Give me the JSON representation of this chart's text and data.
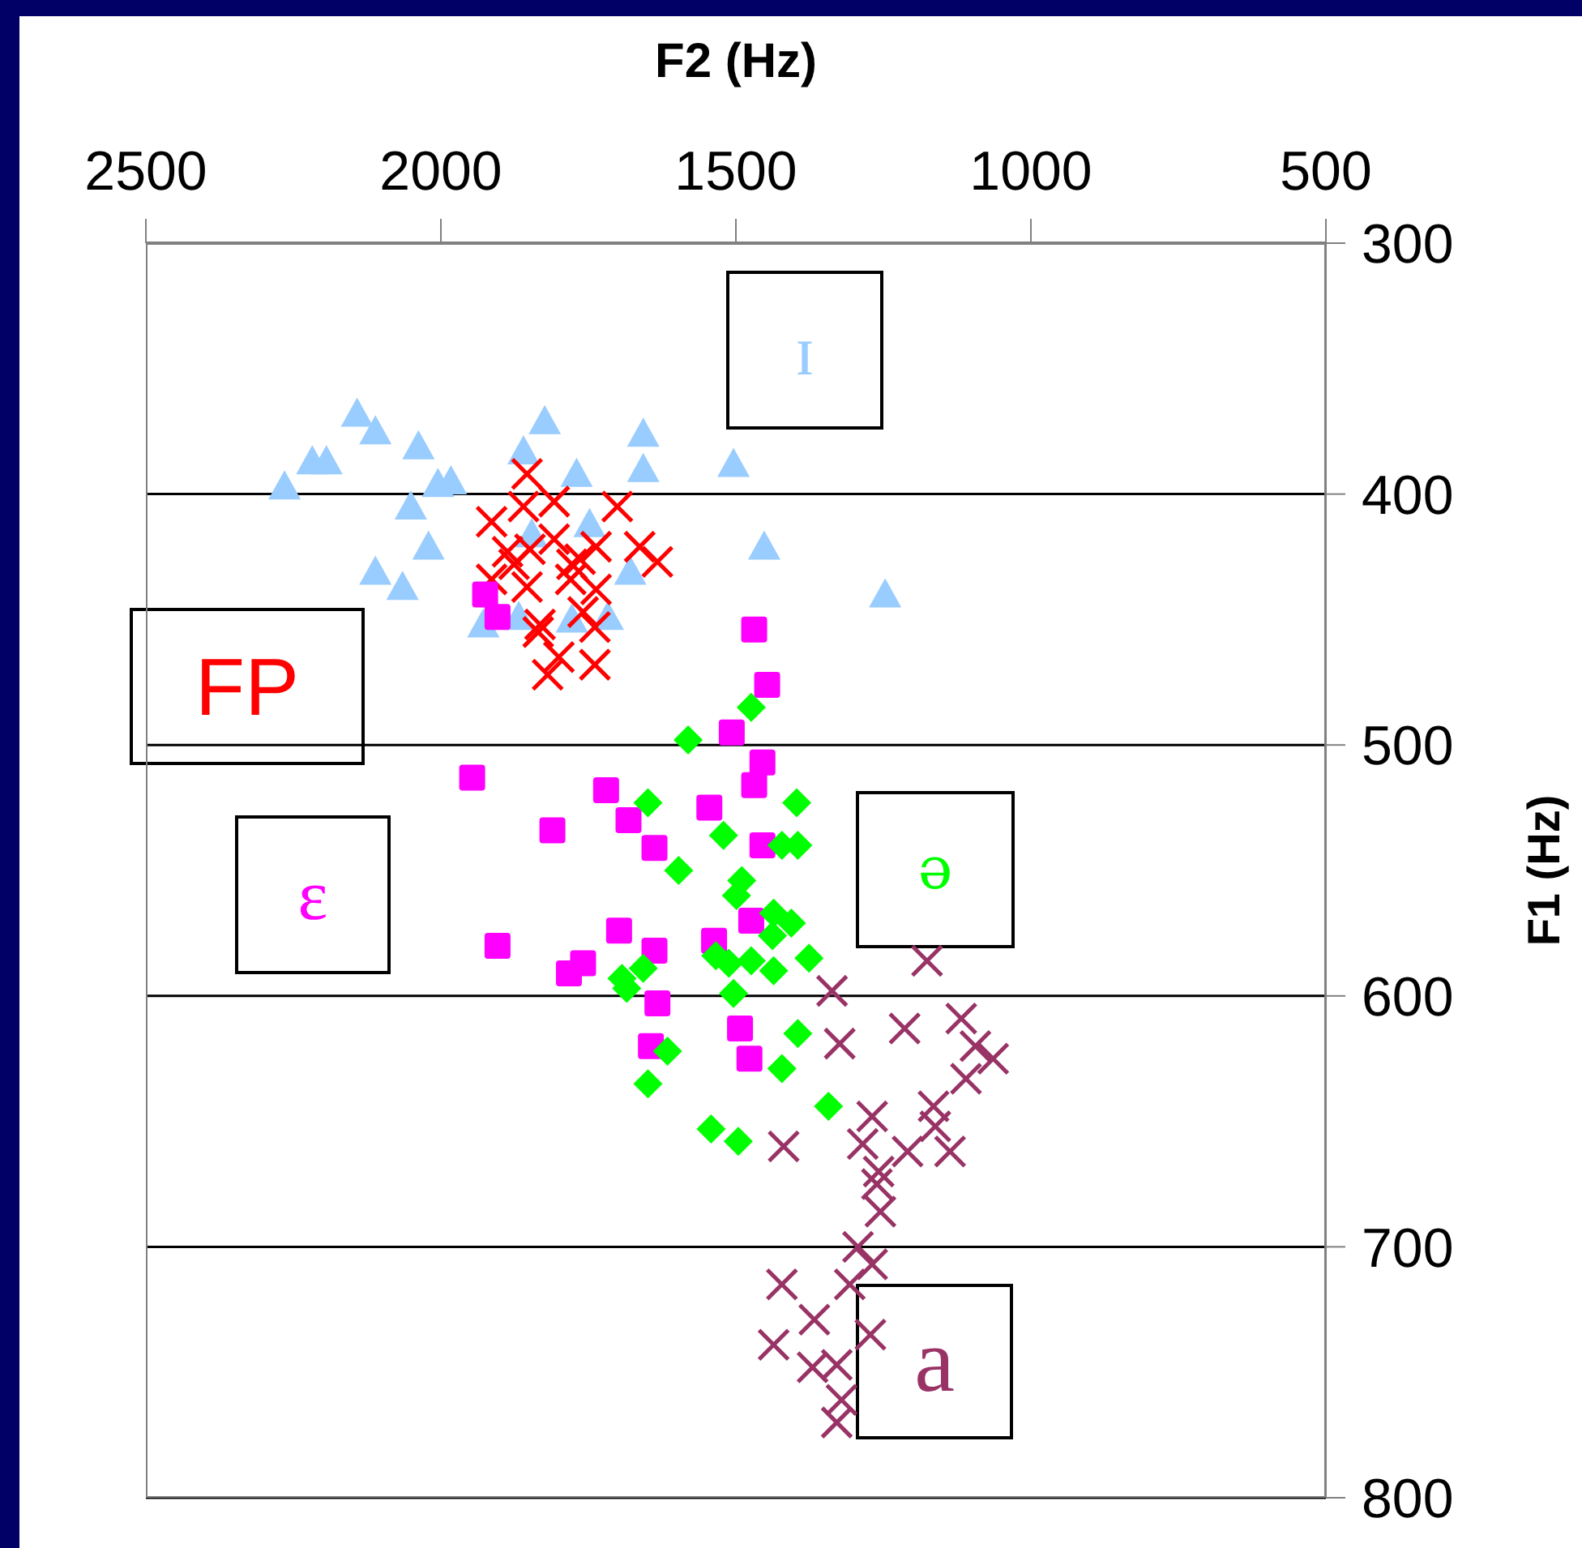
{
  "chart_data": {
    "type": "scatter",
    "xlabel": "F2 (Hz)",
    "ylabel": "F1 (Hz)",
    "xlim": [
      2500,
      500
    ],
    "xticks": [
      2500,
      2000,
      1500,
      1000,
      500
    ],
    "ylim": [
      800,
      300
    ],
    "yticks": [
      300,
      400,
      500,
      600,
      700,
      800
    ],
    "grid": "y",
    "legend": false,
    "series": [
      {
        "name": "ɪ",
        "color": "#99ccff",
        "marker": "triangle",
        "x": [
          2142,
          2111,
          2218,
          2194,
          2265,
          2038,
          2051,
          2005,
          1983,
          2021,
          2111,
          2065,
          1824,
          1860,
          1770,
          1657,
          1657,
          1504,
          1452,
          1247,
          1928,
          1846,
          1748,
          1679,
          1717,
          1778,
          1868
        ],
        "values": [
          368,
          375,
          387,
          387,
          397,
          381,
          405,
          396,
          395,
          421,
          431,
          437,
          371,
          383,
          392,
          376,
          390,
          388,
          421,
          440,
          452,
          416,
          412,
          431,
          449,
          450,
          449
        ]
      },
      {
        "name": "FP",
        "color": "#ff0000",
        "marker": "cross",
        "x": [
          1854,
          1860,
          1808,
          1701,
          1914,
          1887,
          1849,
          1808,
          1737,
          1663,
          1633,
          1876,
          1778,
          1764,
          1914,
          1854,
          1780,
          1737,
          1759,
          1832,
          1835,
          1739,
          1800,
          1819,
          1739
        ],
        "values": [
          392,
          405,
          403,
          405,
          411,
          423,
          422,
          418,
          421,
          421,
          427,
          428,
          428,
          426,
          434,
          437,
          434,
          438,
          447,
          452,
          455,
          453,
          465,
          472,
          468
        ]
      },
      {
        "name": "ɛ",
        "color": "#ff00ff",
        "marker": "square",
        "x": [
          1469,
          1447,
          1507,
          1455,
          1469,
          1947,
          1720,
          1682,
          1811,
          1638,
          1545,
          1455,
          1904,
          1698,
          1638,
          1783,
          1759,
          1537,
          1474,
          1633,
          1644,
          1493,
          1477,
          1925,
          1904
        ],
        "values": [
          454,
          476,
          495,
          507,
          516,
          513,
          518,
          530,
          534,
          541,
          525,
          540,
          580,
          574,
          582,
          591,
          587,
          578,
          570,
          603,
          620,
          613,
          625,
          440,
          449
        ]
      },
      {
        "name": "ə",
        "color": "#00ff00",
        "marker": "diamond",
        "x": [
          1474,
          1581,
          1649,
          1521,
          1397,
          1422,
          1395,
          1597,
          1490,
          1499,
          1436,
          1406,
          1438,
          1376,
          1534,
          1512,
          1474,
          1436,
          1504,
          1693,
          1685,
          1657,
          1395,
          1616,
          1649,
          1422,
          1343,
          1542,
          1496
        ],
        "values": [
          485,
          498,
          523,
          536,
          523,
          540,
          540,
          550,
          554,
          560,
          567,
          571,
          576,
          585,
          584,
          587,
          586,
          590,
          599,
          593,
          597,
          589,
          615,
          622,
          635,
          629,
          644,
          653,
          658
        ]
      },
      {
        "name": "a",
        "color": "#993366",
        "marker": "cross",
        "x": [
          1176,
          1337,
          1118,
          1214,
          1324,
          1094,
          1064,
          1110,
          1269,
          1165,
          1162,
          1285,
          1209,
          1137,
          1419,
          1258,
          1261,
          1255,
          1293,
          1269,
          1422,
          1307,
          1367,
          1272,
          1436,
          1370,
          1329,
          1321,
          1329
        ],
        "values": [
          586,
          598,
          609,
          613,
          619,
          620,
          625,
          633,
          648,
          644,
          652,
          659,
          662,
          662,
          660,
          670,
          675,
          686,
          700,
          707,
          715,
          715,
          729,
          735,
          739,
          748,
          747,
          761,
          770
        ]
      }
    ]
  }
}
